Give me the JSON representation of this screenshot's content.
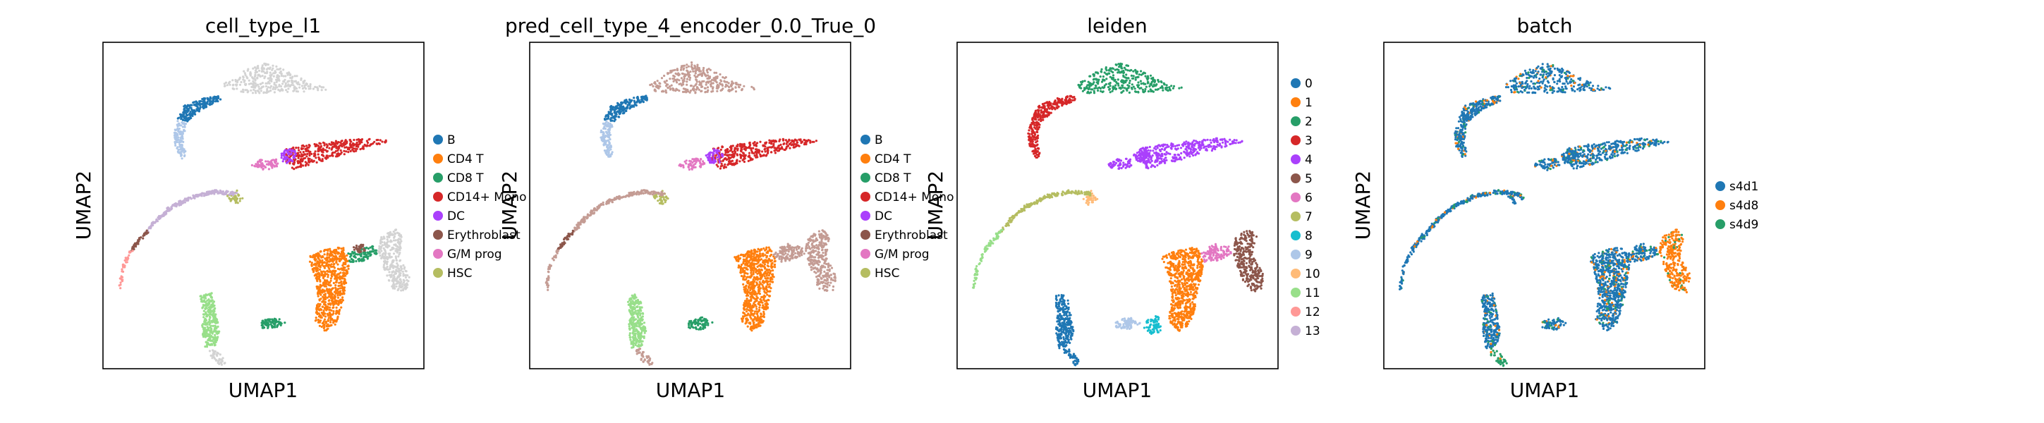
{
  "figure": {
    "background": "#ffffff"
  },
  "chart_data": [
    {
      "type": "scatter",
      "title": "cell_type_l1",
      "xlabel": "UMAP1",
      "ylabel": "UMAP2",
      "grid": false,
      "legend_position": "right",
      "legend": [
        {
          "label": "B",
          "color": "#1f77b4"
        },
        {
          "label": "CD4 T",
          "color": "#ff7f0e"
        },
        {
          "label": "CD8 T",
          "color": "#279e68"
        },
        {
          "label": "CD14+ Mono",
          "color": "#d62728"
        },
        {
          "label": "DC",
          "color": "#aa40fc"
        },
        {
          "label": "Erythroblast",
          "color": "#8c564b"
        },
        {
          "label": "G/M prog",
          "color": "#e377c2"
        },
        {
          "label": "HSC",
          "color": "#b5bd61"
        }
      ],
      "clusters": [
        {
          "region": "top-lobe",
          "color": "#d3d3d3"
        },
        {
          "region": "left-arc-upper",
          "color": "#1f77b4"
        },
        {
          "region": "left-arc-lower",
          "color": "#aec7e8"
        },
        {
          "region": "mid-band",
          "color": "#d62728"
        },
        {
          "region": "mid-band-left",
          "color": "#aa40fc"
        },
        {
          "region": "mid-band-tail",
          "color": "#e377c2"
        },
        {
          "region": "long-curve-end",
          "color": "#b5bd61"
        },
        {
          "region": "long-curve",
          "color": "#c5b0d5"
        },
        {
          "region": "long-curve-start",
          "color": "#8c564b"
        },
        {
          "region": "far-left-tip",
          "color": "#ff9896"
        },
        {
          "region": "right-main",
          "color": "#ff7f0e"
        },
        {
          "region": "right-arm",
          "color": "#279e68"
        },
        {
          "region": "right-arm-end",
          "color": "#8c564b"
        },
        {
          "region": "right-lobe",
          "color": "#d3d3d3"
        },
        {
          "region": "small-blob-mid",
          "color": "#279e68"
        },
        {
          "region": "bottom-left-blob",
          "color": "#98df8a"
        },
        {
          "region": "bottom-left-tail",
          "color": "#d3d3d3"
        }
      ]
    },
    {
      "type": "scatter",
      "title": "pred_cell_type_4_encoder_0.0_True_0",
      "xlabel": "UMAP1",
      "ylabel": "UMAP2",
      "grid": false,
      "legend_position": "right",
      "legend": [
        {
          "label": "B",
          "color": "#1f77b4"
        },
        {
          "label": "CD4 T",
          "color": "#ff7f0e"
        },
        {
          "label": "CD8 T",
          "color": "#279e68"
        },
        {
          "label": "CD14+ Mono",
          "color": "#d62728"
        },
        {
          "label": "DC",
          "color": "#aa40fc"
        },
        {
          "label": "Erythroblast",
          "color": "#8c564b"
        },
        {
          "label": "G/M prog",
          "color": "#e377c2"
        },
        {
          "label": "HSC",
          "color": "#b5bd61"
        }
      ],
      "clusters": [
        {
          "region": "top-lobe",
          "color": "#c49c94"
        },
        {
          "region": "left-arc-upper",
          "color": "#1f77b4"
        },
        {
          "region": "left-arc-lower",
          "color": "#aec7e8"
        },
        {
          "region": "mid-band",
          "color": "#d62728"
        },
        {
          "region": "mid-band-left",
          "color": "#aa40fc"
        },
        {
          "region": "mid-band-tail",
          "color": "#e377c2"
        },
        {
          "region": "long-curve-end",
          "color": "#b5bd61"
        },
        {
          "region": "long-curve",
          "color": "#c49c94"
        },
        {
          "region": "long-curve-start",
          "color": "#8c564b"
        },
        {
          "region": "far-left-tip",
          "color": "#c49c94"
        },
        {
          "region": "right-main",
          "color": "#ff7f0e"
        },
        {
          "region": "right-arm",
          "color": "#c49c94"
        },
        {
          "region": "right-arm-end",
          "color": "#c49c94"
        },
        {
          "region": "right-lobe",
          "color": "#c49c94"
        },
        {
          "region": "small-blob-mid",
          "color": "#279e68"
        },
        {
          "region": "bottom-left-blob",
          "color": "#98df8a"
        },
        {
          "region": "bottom-left-tail",
          "color": "#c49c94"
        }
      ]
    },
    {
      "type": "scatter",
      "title": "leiden",
      "xlabel": "UMAP1",
      "ylabel": "UMAP2",
      "grid": false,
      "legend_position": "right",
      "legend": [
        {
          "label": "0",
          "color": "#1f77b4"
        },
        {
          "label": "1",
          "color": "#ff7f0e"
        },
        {
          "label": "2",
          "color": "#279e68"
        },
        {
          "label": "3",
          "color": "#d62728"
        },
        {
          "label": "4",
          "color": "#aa40fc"
        },
        {
          "label": "5",
          "color": "#8c564b"
        },
        {
          "label": "6",
          "color": "#e377c2"
        },
        {
          "label": "7",
          "color": "#b5bd61"
        },
        {
          "label": "8",
          "color": "#17becf"
        },
        {
          "label": "9",
          "color": "#aec7e8"
        },
        {
          "label": "10",
          "color": "#ffbb78"
        },
        {
          "label": "11",
          "color": "#98df8a"
        },
        {
          "label": "12",
          "color": "#ff9896"
        },
        {
          "label": "13",
          "color": "#c5b0d5"
        }
      ],
      "clusters": [
        {
          "region": "top-lobe",
          "color": "#279e68"
        },
        {
          "region": "left-arc-upper",
          "color": "#d62728"
        },
        {
          "region": "left-arc-lower",
          "color": "#d62728"
        },
        {
          "region": "mid-band",
          "color": "#aa40fc"
        },
        {
          "region": "mid-band-left",
          "color": "#aa40fc"
        },
        {
          "region": "mid-band-tail",
          "color": "#aa40fc"
        },
        {
          "region": "long-curve-end",
          "color": "#ffbb78"
        },
        {
          "region": "long-curve",
          "color": "#b5bd61"
        },
        {
          "region": "long-curve-start",
          "color": "#98df8a"
        },
        {
          "region": "far-left-tip",
          "color": "#98df8a"
        },
        {
          "region": "right-main",
          "color": "#ff7f0e"
        },
        {
          "region": "right-arm",
          "color": "#e377c2"
        },
        {
          "region": "right-arm-end",
          "color": "#e377c2"
        },
        {
          "region": "right-lobe",
          "color": "#8c564b"
        },
        {
          "region": "small-blob-mid",
          "color": "#aec7e8"
        },
        {
          "region": "small-blob-right",
          "color": "#17becf"
        },
        {
          "region": "bottom-left-blob",
          "color": "#1f77b4"
        },
        {
          "region": "bottom-left-tail",
          "color": "#1f77b4"
        }
      ]
    },
    {
      "type": "scatter",
      "title": "batch",
      "xlabel": "UMAP1",
      "ylabel": "UMAP2",
      "grid": false,
      "legend_position": "right",
      "legend": [
        {
          "label": "s4d1",
          "color": "#1f77b4"
        },
        {
          "label": "s4d8",
          "color": "#ff7f0e"
        },
        {
          "label": "s4d9",
          "color": "#279e68"
        }
      ],
      "clusters": [
        {
          "region": "top-lobe",
          "color": "#1f77b4"
        },
        {
          "region": "left-arc-upper",
          "color": "#1f77b4"
        },
        {
          "region": "left-arc-lower",
          "color": "#1f77b4"
        },
        {
          "region": "mid-band",
          "color": "#1f77b4"
        },
        {
          "region": "mid-band-left",
          "color": "#1f77b4"
        },
        {
          "region": "mid-band-tail",
          "color": "#1f77b4"
        },
        {
          "region": "long-curve-end",
          "color": "#1f77b4"
        },
        {
          "region": "long-curve",
          "color": "#1f77b4"
        },
        {
          "region": "long-curve-start",
          "color": "#1f77b4"
        },
        {
          "region": "far-left-tip",
          "color": "#1f77b4"
        },
        {
          "region": "right-main",
          "color": "#1f77b4"
        },
        {
          "region": "right-arm",
          "color": "#1f77b4"
        },
        {
          "region": "right-arm-end",
          "color": "#1f77b4"
        },
        {
          "region": "right-lobe",
          "color": "#ff7f0e"
        },
        {
          "region": "small-blob-mid",
          "color": "#1f77b4"
        },
        {
          "region": "bottom-left-blob",
          "color": "#1f77b4"
        },
        {
          "region": "bottom-left-tail",
          "color": "#279e68"
        }
      ],
      "speckle_colors": [
        "#ff7f0e",
        "#279e68"
      ]
    }
  ]
}
